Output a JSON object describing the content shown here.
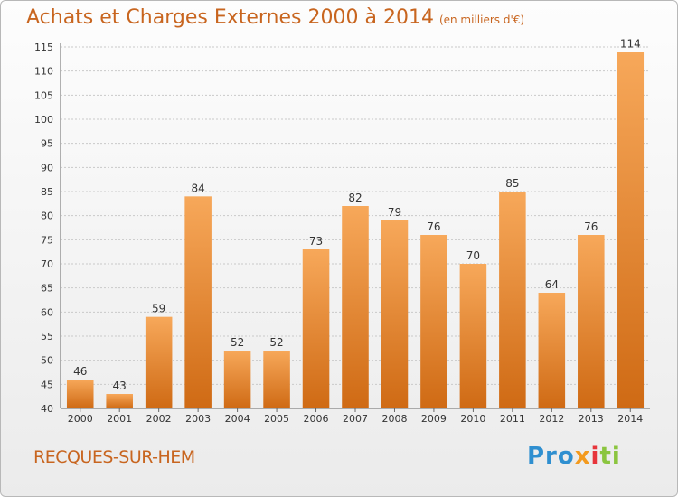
{
  "header": {
    "title": "Achats et Charges Externes 2000 à 2014",
    "unit": "(en milliers d'€)"
  },
  "footer": {
    "commune": "RECQUES-SUR-HEM",
    "logo_parts": [
      "Pro",
      "x",
      "i",
      "ti"
    ]
  },
  "colors": {
    "title": "#c8651f",
    "bar_top": "#f7a85a",
    "bar_bottom": "#cf6a14",
    "grid": "#c9c9c9"
  },
  "chart_data": {
    "type": "bar",
    "title": "Achats et Charges Externes 2000 à 2014",
    "subtitle": "(en milliers d'€)",
    "xlabel": "",
    "ylabel": "",
    "categories": [
      "2000",
      "2001",
      "2002",
      "2003",
      "2004",
      "2005",
      "2006",
      "2007",
      "2008",
      "2009",
      "2010",
      "2011",
      "2012",
      "2013",
      "2014"
    ],
    "values": [
      46,
      43,
      59,
      84,
      52,
      52,
      73,
      82,
      79,
      76,
      70,
      85,
      64,
      76,
      114
    ],
    "ylim": [
      40,
      115
    ],
    "yticks": [
      40,
      45,
      50,
      55,
      60,
      65,
      70,
      75,
      80,
      85,
      90,
      95,
      100,
      105,
      110,
      115
    ],
    "grid": true,
    "legend": "none"
  }
}
